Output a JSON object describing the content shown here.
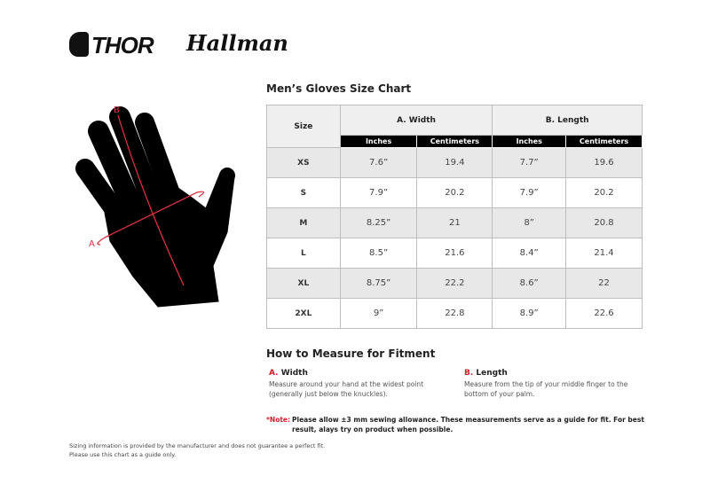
{
  "brands": {
    "thor": "THOR",
    "hallman": "Hallman"
  },
  "chart_title": "Men’s Gloves Size Chart",
  "table": {
    "size_header": "Size",
    "group_headers": [
      "A. Width",
      "B. Length"
    ],
    "unit_headers": [
      "Inches",
      "Centimeters",
      "Inches",
      "Centimeters"
    ],
    "rows": [
      {
        "size": "XS",
        "values": [
          "7.6”",
          "19.4",
          "7.7”",
          "19.6"
        ]
      },
      {
        "size": "S",
        "values": [
          "7.9”",
          "20.2",
          "7.9”",
          "20.2"
        ]
      },
      {
        "size": "M",
        "values": [
          "8.25”",
          "21",
          "8”",
          "20.8"
        ]
      },
      {
        "size": "L",
        "values": [
          "8.5”",
          "21.6",
          "8.4”",
          "21.4"
        ]
      },
      {
        "size": "XL",
        "values": [
          "8.75”",
          "22.2",
          "8.6”",
          "22"
        ]
      },
      {
        "size": "2XL",
        "values": [
          "9”",
          "22.8",
          "8.9”",
          "22.6"
        ]
      }
    ]
  },
  "diagram": {
    "label_a": "A",
    "label_b": "B"
  },
  "measure": {
    "title": "How to Measure for Fitment",
    "a": {
      "letter": "A.",
      "label": "Width",
      "text": "Measure around your hand at the widest point (generally just below the knuckles)."
    },
    "b": {
      "letter": "B.",
      "label": "Length",
      "text": "Measure from the tip of your middle finger to the bottom of your palm."
    }
  },
  "note": {
    "label": "*Note:",
    "text": "Please allow ±3 mm sewing allowance. These measurements serve as a guide for fit. For best result, alays try on product when possible."
  },
  "disclaimer": [
    "Sizing information is provided by the manufacturer and does not guarantee a perfect fit.",
    "Please use this chart as a guide only."
  ],
  "colors": {
    "accent": "#d0202c",
    "header_black": "#000000",
    "row_gray": "#e8e8e8"
  }
}
